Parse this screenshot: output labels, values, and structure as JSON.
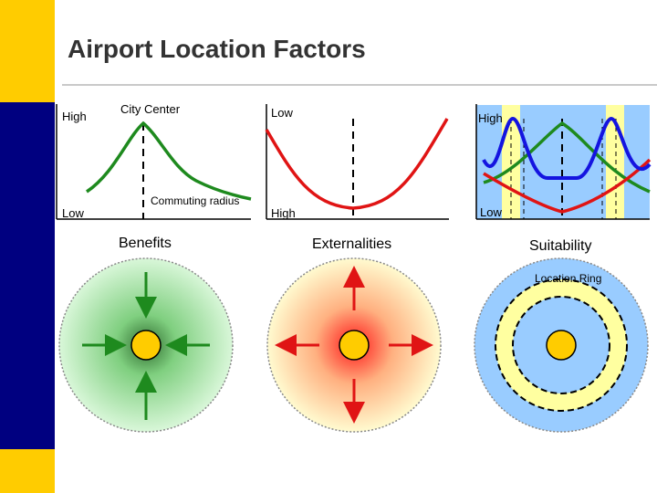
{
  "title": "Airport Location Factors",
  "benefits": {
    "label_high": "High",
    "label_low": "Low",
    "label_center": "City Center",
    "label_radius": "Commuting radius",
    "caption": "Benefits"
  },
  "externalities": {
    "label_low": "Low",
    "label_high": "High",
    "caption": "Externalities"
  },
  "suitability": {
    "label_high": "High",
    "label_low": "Low",
    "caption": "Suitability",
    "ring_label": "Location Ring"
  },
  "colors": {
    "green": "#1e8a1e",
    "red": "#e01414",
    "blue": "#1414e0",
    "yellow_band": "#ffffa0",
    "blue_band": "#99ccff",
    "center": "#ffcc00"
  }
}
